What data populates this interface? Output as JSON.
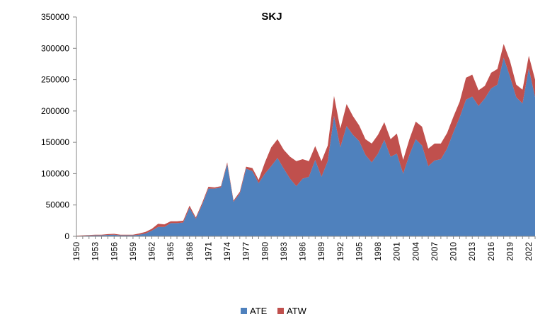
{
  "chart_data": {
    "type": "area",
    "stacked": true,
    "title": "SKJ",
    "xlabel": "",
    "ylabel": "",
    "ylim": [
      0,
      350000
    ],
    "yticks": [
      0,
      50000,
      100000,
      150000,
      200000,
      250000,
      300000,
      350000
    ],
    "ytick_labels": [
      "0",
      "50000",
      "100000",
      "150000",
      "200000",
      "250000",
      "300000",
      "350000"
    ],
    "xticks": [
      1950,
      1953,
      1956,
      1959,
      1962,
      1965,
      1968,
      1971,
      1974,
      1977,
      1980,
      1983,
      1986,
      1989,
      1992,
      1995,
      1998,
      2001,
      2004,
      2007,
      2010,
      2013,
      2016,
      2019,
      2022
    ],
    "xtick_labels": [
      "1950",
      "1953",
      "1956",
      "1959",
      "1962",
      "1965",
      "1968",
      "1971",
      "1974",
      "1977",
      "1980",
      "1983",
      "1986",
      "1989",
      "1992",
      "1995",
      "1998",
      "2001",
      "2004",
      "2007",
      "2010",
      "2013",
      "2016",
      "2019",
      "2022"
    ],
    "grid": false,
    "legend_position": "bottom",
    "x": [
      1950,
      1951,
      1952,
      1953,
      1954,
      1955,
      1956,
      1957,
      1958,
      1959,
      1960,
      1961,
      1962,
      1963,
      1964,
      1965,
      1966,
      1967,
      1968,
      1969,
      1970,
      1971,
      1972,
      1973,
      1974,
      1975,
      1976,
      1977,
      1978,
      1979,
      1980,
      1981,
      1982,
      1983,
      1984,
      1985,
      1986,
      1987,
      1988,
      1989,
      1990,
      1991,
      1992,
      1993,
      1994,
      1995,
      1996,
      1997,
      1998,
      1999,
      2000,
      2001,
      2002,
      2003,
      2004,
      2005,
      2006,
      2007,
      2008,
      2009,
      2010,
      2011,
      2012,
      2013,
      2014,
      2015,
      2016,
      2017,
      2018,
      2019,
      2020,
      2021,
      2022,
      2023
    ],
    "series": [
      {
        "name": "ATE",
        "color": "#4f81bd",
        "values": [
          500,
          800,
          1200,
          1500,
          1500,
          2200,
          2500,
          1500,
          1500,
          1500,
          2500,
          4500,
          9000,
          15000,
          15000,
          21000,
          21000,
          22000,
          45000,
          28000,
          50000,
          76000,
          76000,
          78000,
          115000,
          55000,
          68000,
          108000,
          104000,
          85000,
          100000,
          112000,
          125000,
          108000,
          92000,
          80000,
          92000,
          95000,
          122000,
          95000,
          120000,
          192000,
          142000,
          176000,
          162000,
          152000,
          130000,
          118000,
          132000,
          154000,
          127000,
          132000,
          100000,
          130000,
          155000,
          145000,
          112000,
          121000,
          123000,
          140000,
          166000,
          190000,
          218000,
          223000,
          208000,
          220000,
          236000,
          242000,
          285000,
          255000,
          222000,
          212000,
          268000,
          222000
        ]
      },
      {
        "name": "ATW",
        "color": "#c0504d",
        "values": [
          500,
          700,
          800,
          1000,
          1000,
          1300,
          1500,
          1000,
          1000,
          1000,
          2000,
          2500,
          3000,
          5000,
          4000,
          3000,
          3000,
          3000,
          4000,
          2000,
          3000,
          3000,
          2000,
          2000,
          3000,
          2000,
          3000,
          3000,
          5000,
          5000,
          18000,
          30000,
          30000,
          30000,
          35000,
          40000,
          31000,
          25000,
          22000,
          25000,
          25000,
          32000,
          30000,
          35000,
          30000,
          25000,
          25000,
          30000,
          30000,
          28000,
          28000,
          32000,
          22000,
          25000,
          28000,
          30000,
          28000,
          27000,
          25000,
          25000,
          25000,
          25000,
          35000,
          35000,
          25000,
          20000,
          25000,
          25000,
          22000,
          25000,
          20000,
          22000,
          20000,
          28000
        ]
      }
    ]
  }
}
